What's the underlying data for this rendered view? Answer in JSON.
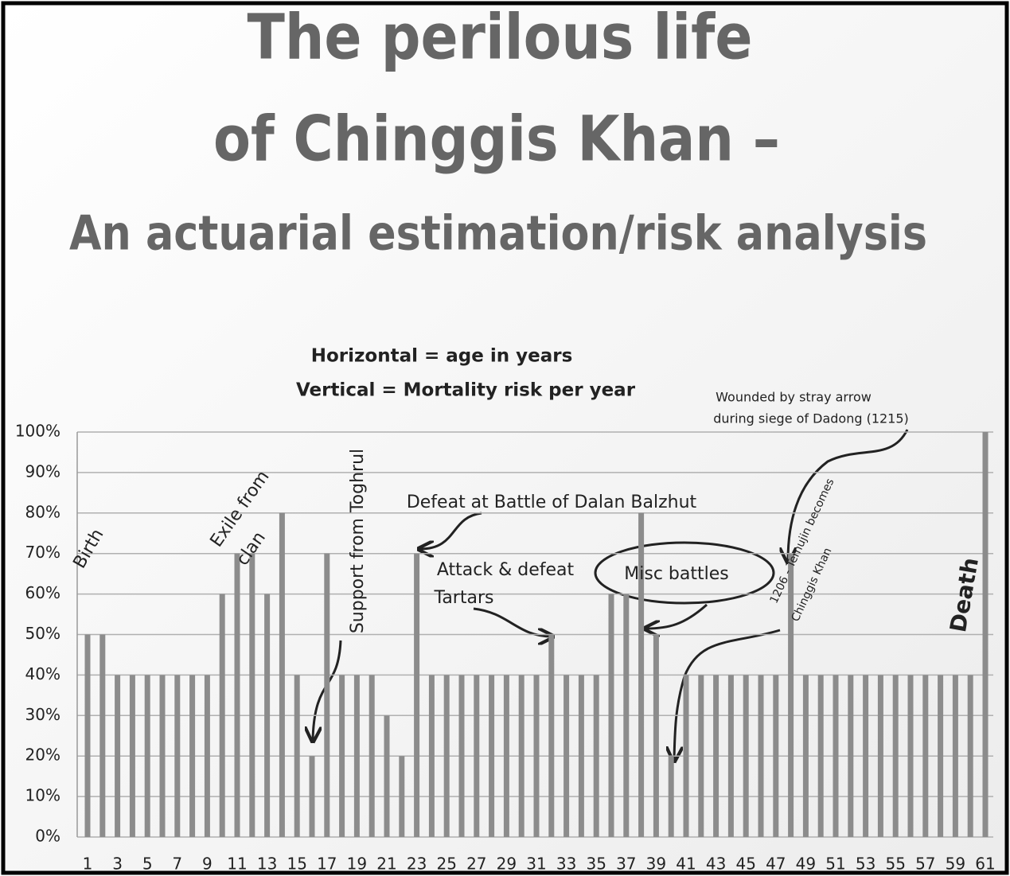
{
  "chart_data": {
    "type": "bar",
    "title": [
      "The perilous life",
      "of Chinggis Khan –"
    ],
    "subtitle": "An actuarial estimation/risk analysis",
    "axis_notes": [
      "Horizontal = age in years",
      "Vertical = Mortality risk per year"
    ],
    "categories": [
      1,
      null,
      3,
      null,
      5,
      null,
      7,
      null,
      9,
      null,
      11,
      null,
      13,
      null,
      15,
      null,
      17,
      null,
      19,
      null,
      21,
      null,
      23,
      null,
      25,
      null,
      27,
      null,
      29,
      null,
      31,
      null,
      33,
      null,
      35,
      null,
      37,
      null,
      39,
      null,
      41,
      null,
      43,
      null,
      45,
      null,
      47,
      null,
      49,
      null,
      51,
      null,
      53,
      null,
      55,
      null,
      57,
      null,
      59,
      null,
      61
    ],
    "values": [
      50,
      50,
      40,
      40,
      40,
      40,
      40,
      40,
      40,
      60,
      70,
      70,
      60,
      80,
      40,
      20,
      70,
      40,
      40,
      40,
      30,
      20,
      70,
      40,
      40,
      40,
      40,
      40,
      40,
      40,
      40,
      50,
      40,
      40,
      40,
      60,
      60,
      80,
      50,
      20,
      40,
      40,
      40,
      40,
      40,
      40,
      40,
      70,
      40,
      40,
      40,
      40,
      40,
      40,
      40,
      40,
      40,
      40,
      40,
      40,
      100
    ],
    "color": "#8c8c8c",
    "ylim": [
      0,
      100
    ],
    "yticks": [
      {
        "value": 0,
        "label": "0%"
      },
      {
        "value": 10,
        "label": "10%"
      },
      {
        "value": 20,
        "label": "20%"
      },
      {
        "value": 30,
        "label": "30%"
      },
      {
        "value": 40,
        "label": "40%"
      },
      {
        "value": 50,
        "label": "50%"
      },
      {
        "value": 60,
        "label": "60%"
      },
      {
        "value": 70,
        "label": "70%"
      },
      {
        "value": 80,
        "label": "80%"
      },
      {
        "value": 90,
        "label": "90%"
      },
      {
        "value": 100,
        "label": "100%"
      }
    ],
    "grid": true,
    "annotations": [
      "Birth",
      "Exile from",
      "clan",
      "Support from Toghrul",
      "Defeat at Battle of Dalan Balzhut",
      "Attack & defeat",
      "Tartars",
      "Misc  battles",
      "Wounded by stray arrow",
      "during siege of Dadong (1215)",
      "1206 - Temujin becomes",
      "Chinggis Khan",
      "Death"
    ]
  }
}
